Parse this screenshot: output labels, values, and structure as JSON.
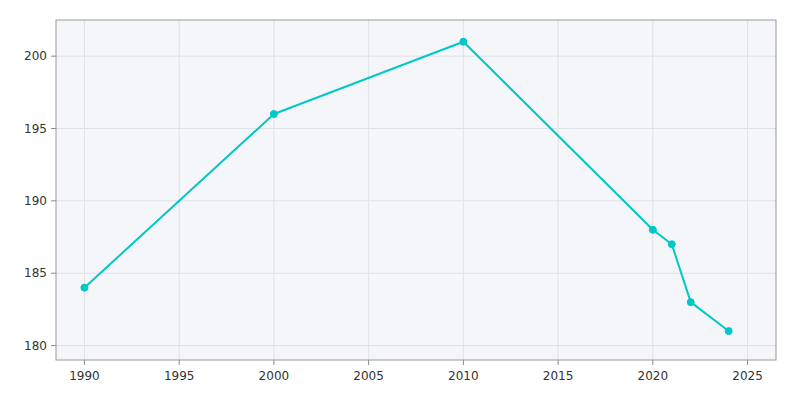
{
  "chart_data": {
    "type": "line",
    "x": [
      1990,
      2000,
      2010,
      2020,
      2021,
      2022,
      2024
    ],
    "values": [
      184,
      196,
      201,
      188,
      187,
      183,
      181
    ],
    "color": "#00c8c8",
    "marker": "circle",
    "xlim": [
      1988.5,
      2026.5
    ],
    "ylim": [
      179.0,
      202.5
    ],
    "xticks": [
      1990,
      1995,
      2000,
      2005,
      2010,
      2015,
      2020,
      2025
    ],
    "yticks": [
      180,
      185,
      190,
      195,
      200
    ],
    "grid": true
  }
}
